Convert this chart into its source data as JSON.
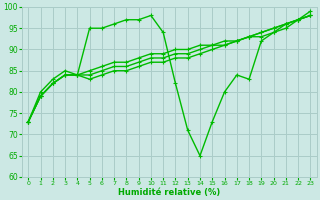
{
  "background_color": "#cce8e4",
  "grid_color": "#aaccc8",
  "line_color": "#00bb00",
  "marker_color": "#00bb00",
  "xlabel": "Humidité relative (%)",
  "xlabel_color": "#00aa00",
  "tick_color": "#00aa00",
  "ylim": [
    60,
    100
  ],
  "xlim": [
    -0.5,
    23.5
  ],
  "yticks": [
    60,
    65,
    70,
    75,
    80,
    85,
    90,
    95,
    100
  ],
  "xticks": [
    0,
    1,
    2,
    3,
    4,
    5,
    6,
    7,
    8,
    9,
    10,
    11,
    12,
    13,
    14,
    15,
    16,
    17,
    18,
    19,
    20,
    21,
    22,
    23
  ],
  "series": [
    [
      73,
      80,
      83,
      85,
      84,
      95,
      95,
      96,
      97,
      97,
      98,
      94,
      82,
      71,
      65,
      73,
      80,
      84,
      83,
      92,
      94,
      96,
      97,
      99
    ],
    [
      73,
      79,
      82,
      84,
      84,
      85,
      86,
      87,
      87,
      88,
      89,
      89,
      90,
      90,
      91,
      91,
      92,
      92,
      93,
      94,
      95,
      96,
      97,
      98
    ],
    [
      73,
      79,
      82,
      84,
      84,
      84,
      85,
      86,
      86,
      87,
      88,
      88,
      89,
      89,
      90,
      91,
      91,
      92,
      93,
      93,
      94,
      95,
      97,
      98
    ],
    [
      73,
      79,
      82,
      84,
      84,
      83,
      84,
      85,
      85,
      86,
      87,
      87,
      88,
      88,
      89,
      90,
      91,
      92,
      93,
      94,
      95,
      96,
      97,
      98
    ]
  ]
}
